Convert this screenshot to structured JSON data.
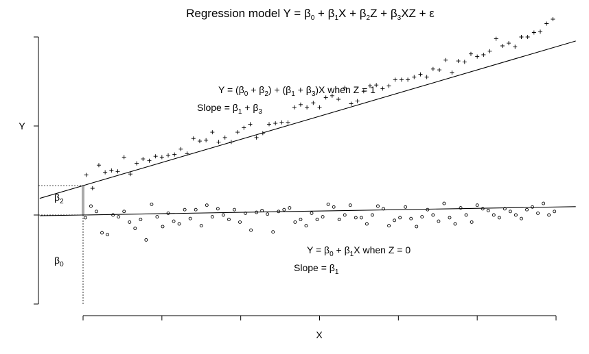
{
  "chart_data": {
    "type": "scatter",
    "title_parts": [
      "Regression model Y = β",
      "0",
      " + β",
      "1",
      "X + β",
      "2",
      "Z + β",
      "3",
      "XZ + ε"
    ],
    "xlabel": "X",
    "ylabel": "Y",
    "xlim": [
      0,
      6
    ],
    "ylim": [
      -1,
      2.05
    ],
    "x_ticks": [
      0,
      1,
      2,
      3,
      4,
      5,
      6
    ],
    "x_tick_labels": [],
    "y_ticks": [
      -1,
      0,
      1,
      2
    ],
    "y_tick_labels": [
      "",
      "",
      "Y",
      ""
    ],
    "grid": false,
    "parameters": {
      "beta0": 0,
      "beta1": 0.015,
      "beta2": 0.33,
      "beta3": 0.245
    },
    "lines": [
      {
        "z": 1,
        "intercept": 0.33,
        "slope": 0.26
      },
      {
        "z": 0,
        "intercept": 0.0,
        "slope": 0.015
      }
    ],
    "annotations": {
      "line1_parts": [
        "Y = (β",
        "0",
        " + β",
        "2",
        ") + (β",
        "1",
        " + β",
        "3",
        ")X when Z = 1"
      ],
      "slope1_parts": [
        "Slope = β",
        "1",
        " + β",
        "3"
      ],
      "line0_parts": [
        "Y = β",
        "0",
        " + β",
        "1",
        "X when Z = 0"
      ],
      "slope0_parts": [
        "Slope = β",
        "1"
      ],
      "beta2_parts": [
        "β",
        "2"
      ],
      "beta0_parts": [
        "β",
        "0"
      ]
    },
    "series": [
      {
        "marker": "+",
        "x": [
          0.04,
          0.12,
          0.2,
          0.28,
          0.36,
          0.44,
          0.52,
          0.6,
          0.68,
          0.76,
          0.84,
          0.92,
          1.0,
          1.08,
          1.16,
          1.24,
          1.32,
          1.4,
          1.48,
          1.56,
          1.64,
          1.72,
          1.8,
          1.88,
          1.96,
          2.04,
          2.12,
          2.2,
          2.28,
          2.36,
          2.44,
          2.52,
          2.6,
          2.68,
          2.76,
          2.84,
          2.92,
          3.0,
          3.08,
          3.16,
          3.24,
          3.32,
          3.4,
          3.48,
          3.56,
          3.64,
          3.72,
          3.8,
          3.88,
          3.96,
          4.04,
          4.12,
          4.2,
          4.28,
          4.36,
          4.44,
          4.52,
          4.6,
          4.68,
          4.76,
          4.84,
          4.92,
          5.0,
          5.08,
          5.16,
          5.24,
          5.32,
          5.4,
          5.48,
          5.56,
          5.64,
          5.72,
          5.8,
          5.88,
          5.96
        ],
        "y": [
          0.45,
          0.3,
          0.56,
          0.48,
          0.5,
          0.49,
          0.65,
          0.46,
          0.58,
          0.63,
          0.61,
          0.66,
          0.65,
          0.67,
          0.68,
          0.74,
          0.69,
          0.86,
          0.83,
          0.84,
          0.93,
          0.82,
          0.87,
          0.82,
          0.93,
          0.98,
          1.02,
          0.87,
          0.92,
          1.02,
          1.03,
          1.04,
          1.04,
          1.21,
          1.24,
          1.21,
          1.26,
          1.21,
          1.32,
          1.34,
          1.3,
          1.43,
          1.25,
          1.28,
          1.39,
          1.45,
          1.46,
          1.42,
          1.45,
          1.52,
          1.52,
          1.52,
          1.55,
          1.58,
          1.55,
          1.64,
          1.63,
          1.74,
          1.6,
          1.73,
          1.72,
          1.81,
          1.78,
          1.8,
          1.84,
          1.98,
          1.9,
          1.93,
          1.89,
          2.0,
          2.0,
          2.05,
          2.06,
          2.15,
          2.2
        ]
      },
      {
        "marker": "o",
        "x": [
          0.03,
          0.1,
          0.17,
          0.24,
          0.31,
          0.38,
          0.45,
          0.52,
          0.59,
          0.66,
          0.73,
          0.8,
          0.87,
          0.94,
          1.01,
          1.08,
          1.15,
          1.22,
          1.29,
          1.36,
          1.43,
          1.5,
          1.57,
          1.64,
          1.71,
          1.78,
          1.85,
          1.92,
          1.99,
          2.06,
          2.13,
          2.2,
          2.27,
          2.34,
          2.41,
          2.48,
          2.55,
          2.62,
          2.69,
          2.76,
          2.83,
          2.9,
          2.97,
          3.04,
          3.11,
          3.18,
          3.25,
          3.32,
          3.39,
          3.46,
          3.53,
          3.6,
          3.67,
          3.74,
          3.81,
          3.88,
          3.95,
          4.02,
          4.09,
          4.16,
          4.23,
          4.3,
          4.37,
          4.44,
          4.51,
          4.58,
          4.65,
          4.72,
          4.79,
          4.86,
          4.93,
          5.0,
          5.07,
          5.14,
          5.21,
          5.28,
          5.35,
          5.42,
          5.49,
          5.56,
          5.63,
          5.7,
          5.77,
          5.84,
          5.91,
          5.98
        ],
        "y": [
          -0.03,
          0.1,
          0.04,
          -0.2,
          -0.22,
          0.0,
          -0.02,
          0.04,
          -0.08,
          -0.15,
          -0.05,
          -0.28,
          0.12,
          -0.02,
          -0.13,
          0.02,
          -0.07,
          -0.1,
          0.06,
          -0.04,
          0.06,
          -0.12,
          0.11,
          -0.02,
          0.07,
          0.0,
          -0.05,
          0.06,
          -0.08,
          0.02,
          -0.17,
          0.03,
          0.05,
          0.01,
          -0.19,
          0.04,
          0.06,
          0.08,
          -0.08,
          -0.05,
          -0.12,
          0.02,
          -0.05,
          -0.02,
          0.12,
          0.09,
          -0.05,
          0.0,
          0.11,
          -0.03,
          -0.03,
          -0.1,
          0.0,
          0.1,
          0.07,
          -0.12,
          -0.06,
          -0.03,
          0.09,
          -0.04,
          -0.13,
          -0.02,
          0.06,
          0.0,
          -0.07,
          0.13,
          -0.03,
          -0.1,
          0.08,
          0.0,
          -0.08,
          0.11,
          0.07,
          0.05,
          0.0,
          -0.03,
          0.07,
          0.04,
          0.0,
          -0.04,
          0.06,
          0.09,
          0.02,
          0.13,
          0.0,
          0.04
        ]
      }
    ]
  }
}
